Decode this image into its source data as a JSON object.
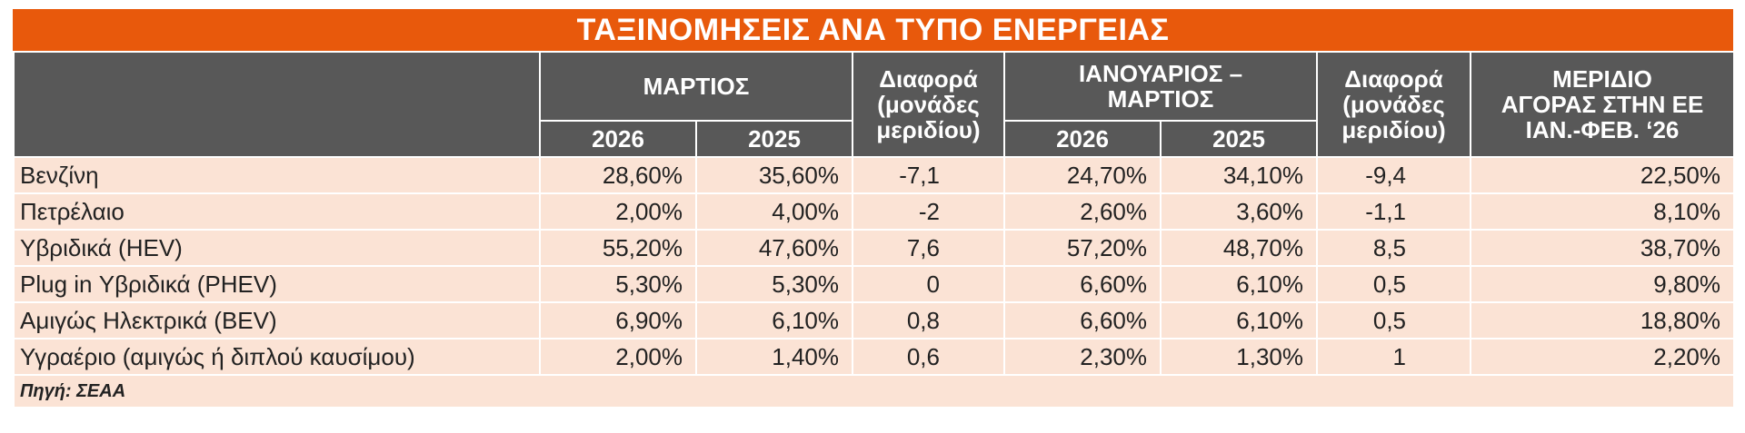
{
  "title": "ΤΑΞΙΝΟΜΗΣΕΙΣ ΑΝΑ ΤΥΠΟ ΕΝΕΡΓΕΙΑΣ",
  "headers": {
    "march": "ΜΑΡΤΙΟΣ",
    "diff1_line1": "Διαφορά",
    "diff1_line2": "(μονάδες",
    "diff1_line3": "μεριδίου)",
    "jan_mar_line1": "ΙΑΝΟΥΑΡΙΟΣ –",
    "jan_mar_line2": "ΜΑΡΤΙΟΣ",
    "diff2_line1": "Διαφορά",
    "diff2_line2": "(μονάδες",
    "diff2_line3": "μεριδίου)",
    "share_line1": "ΜΕΡΙΔΙΟ",
    "share_line2": "ΑΓΟΡΑΣ ΣΤΗΝ ΕΕ",
    "share_line3": "ΙΑΝ.-ΦΕΒ. ‘26",
    "year_2026": "2026",
    "year_2025": "2025"
  },
  "rows": [
    {
      "type": "Βενζίνη",
      "m2026": "28,60%",
      "m2025": "35,60%",
      "d1": "-7,1",
      "jm2026": "24,70%",
      "jm2025": "34,10%",
      "d2": "-9,4",
      "eu": "22,50%"
    },
    {
      "type": "Πετρέλαιο",
      "m2026": "2,00%",
      "m2025": "4,00%",
      "d1": "-2",
      "jm2026": "2,60%",
      "jm2025": "3,60%",
      "d2": "-1,1",
      "eu": "8,10%"
    },
    {
      "type": "Υβριδικά (HEV)",
      "m2026": "55,20%",
      "m2025": "47,60%",
      "d1": "7,6",
      "jm2026": "57,20%",
      "jm2025": "48,70%",
      "d2": "8,5",
      "eu": "38,70%"
    },
    {
      "type": "Plug in Υβριδικά (PHEV)",
      "m2026": "5,30%",
      "m2025": "5,30%",
      "d1": "0",
      "jm2026": "6,60%",
      "jm2025": "6,10%",
      "d2": "0,5",
      "eu": "9,80%"
    },
    {
      "type": "Αμιγώς Ηλεκτρικά (BEV)",
      "m2026": "6,90%",
      "m2025": "6,10%",
      "d1": "0,8",
      "jm2026": "6,60%",
      "jm2025": "6,10%",
      "d2": "0,5",
      "eu": "18,80%"
    },
    {
      "type": "Υγραέριο (αμιγώς ή διπλού καυσίμου)",
      "m2026": "2,00%",
      "m2025": "1,40%",
      "d1": "0,6",
      "jm2026": "2,30%",
      "jm2025": "1,30%",
      "d2": "1",
      "eu": "2,20%"
    }
  ],
  "source": "Πηγή: ΣΕΑΑ",
  "colors": {
    "title_bg": "#e8590c",
    "header_bg": "#585858",
    "row_bg": "#fbe3d5"
  }
}
